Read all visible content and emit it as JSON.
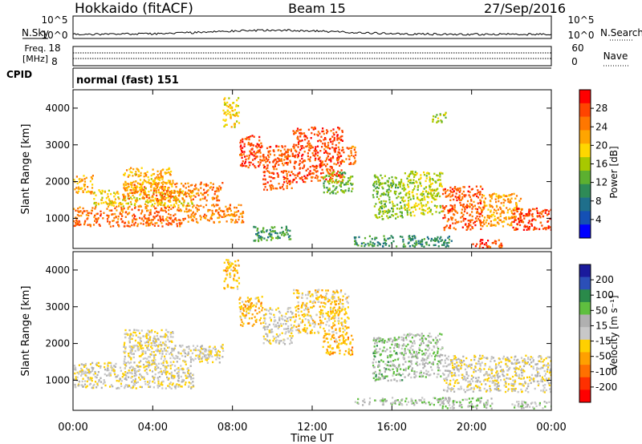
{
  "header": {
    "station": "Hokkaido (fitACF)",
    "beam": "Beam 15",
    "date": "27/Sep/2016"
  },
  "noise_panel": {
    "left_label": "N.Sky",
    "right_label": "N.Search",
    "left_ticks": [
      "10^5",
      "10^0"
    ],
    "right_ticks": [
      "10^5",
      "10^0"
    ]
  },
  "freq_panel": {
    "left_label_line1": "Freq.",
    "left_label_line2": "[MHz]",
    "right_label": "Nave",
    "left_ticks": [
      "18",
      "8"
    ],
    "right_ticks": [
      "60",
      "0"
    ]
  },
  "cpid_panel": {
    "label": "CPID",
    "value": "normal (fast) 151"
  },
  "axes": {
    "ylabel": "Slant Range [km]",
    "xlabel": "Time UT",
    "y_ticks": [
      "1000",
      "2000",
      "3000",
      "4000"
    ],
    "x_ticks": [
      "00:00",
      "04:00",
      "08:00",
      "12:00",
      "16:00",
      "20:00",
      "00:00"
    ]
  },
  "power_colorbar": {
    "label": "Power [dB]",
    "ticks": [
      "28",
      "24",
      "20",
      "16",
      "12",
      "8",
      "4"
    ],
    "colors": [
      "#ff0000",
      "#ff4400",
      "#ff7700",
      "#ffa500",
      "#ffd700",
      "#a8c800",
      "#5cb030",
      "#2e8b57",
      "#1f6f8b",
      "#1450b4",
      "#0000ff"
    ]
  },
  "velocity_colorbar": {
    "label": "Velocity [m s⁻¹]",
    "ticks": [
      "200",
      "100",
      "50",
      "15",
      "-15",
      "-50",
      "-100",
      "-200"
    ],
    "colors": [
      "#1a1a9c",
      "#2b4fb8",
      "#2a8a4a",
      "#5fbf3f",
      "#b0b0b0",
      "#c8c8c8",
      "#ffd000",
      "#ffa000",
      "#ff7000",
      "#ff3000",
      "#ff0000"
    ]
  },
  "chart_data": [
    {
      "type": "heatmap",
      "title": "Beam 15",
      "xlabel": "Time UT",
      "ylabel": "Slant Range [km]",
      "xlim": [
        0,
        24
      ],
      "ylim": [
        180,
        4500
      ],
      "colorbar": "Power [dB]",
      "colorbar_range": [
        0,
        30
      ],
      "regions": [
        {
          "t0": 0.0,
          "t1": 1.0,
          "r0": 1700,
          "r1": 2200,
          "v": 21
        },
        {
          "t0": 0.0,
          "t1": 5.5,
          "r0": 800,
          "r1": 1350,
          "v": 25
        },
        {
          "t0": 1.0,
          "t1": 6.0,
          "r0": 1350,
          "r1": 1800,
          "v": 18
        },
        {
          "t0": 2.5,
          "t1": 7.5,
          "r0": 1500,
          "r1": 2000,
          "v": 24
        },
        {
          "t0": 2.5,
          "t1": 5.0,
          "r0": 1800,
          "r1": 2400,
          "v": 20
        },
        {
          "t0": 5.5,
          "t1": 8.5,
          "r0": 900,
          "r1": 1400,
          "v": 23
        },
        {
          "t0": 7.5,
          "t1": 8.3,
          "r0": 3500,
          "r1": 4300,
          "v": 18
        },
        {
          "t0": 8.3,
          "t1": 9.5,
          "r0": 2400,
          "r1": 3300,
          "v": 27
        },
        {
          "t0": 9.5,
          "t1": 11.0,
          "r0": 1800,
          "r1": 3000,
          "v": 26
        },
        {
          "t0": 11.0,
          "t1": 13.5,
          "r0": 2000,
          "r1": 3500,
          "v": 27
        },
        {
          "t0": 13.5,
          "t1": 14.2,
          "r0": 2500,
          "r1": 3000,
          "v": 25
        },
        {
          "t0": 9.0,
          "t1": 11.0,
          "r0": 400,
          "r1": 800,
          "v": 10
        },
        {
          "t0": 12.5,
          "t1": 14.0,
          "r0": 1700,
          "r1": 2300,
          "v": 13
        },
        {
          "t0": 15.0,
          "t1": 16.5,
          "r0": 1000,
          "r1": 2200,
          "v": 13
        },
        {
          "t0": 14.0,
          "t1": 19.0,
          "r0": 250,
          "r1": 550,
          "v": 9
        },
        {
          "t0": 16.5,
          "t1": 18.5,
          "r0": 1100,
          "r1": 2300,
          "v": 16
        },
        {
          "t0": 18.0,
          "t1": 18.7,
          "r0": 3600,
          "r1": 3900,
          "v": 14
        },
        {
          "t0": 18.5,
          "t1": 20.5,
          "r0": 700,
          "r1": 1900,
          "v": 26
        },
        {
          "t0": 20.5,
          "t1": 22.5,
          "r0": 800,
          "r1": 1700,
          "v": 22
        },
        {
          "t0": 22.0,
          "t1": 24.0,
          "r0": 700,
          "r1": 1300,
          "v": 28
        },
        {
          "t0": 20.0,
          "t1": 21.5,
          "r0": 200,
          "r1": 450,
          "v": 27
        }
      ]
    },
    {
      "type": "heatmap",
      "title": "Beam 15",
      "xlabel": "Time UT",
      "ylabel": "Slant Range [km]",
      "xlim": [
        0,
        24
      ],
      "ylim": [
        180,
        4500
      ],
      "colorbar": "Velocity [m s⁻¹]",
      "colorbar_range": [
        -200,
        200
      ],
      "regions": [
        {
          "t0": 0.0,
          "t1": 6.0,
          "r0": 800,
          "r1": 1500,
          "v": 0
        },
        {
          "t0": 2.5,
          "t1": 7.5,
          "r0": 1500,
          "r1": 2000,
          "v": -5
        },
        {
          "t0": 2.5,
          "t1": 5.0,
          "r0": 1800,
          "r1": 2400,
          "v": -10
        },
        {
          "t0": 7.5,
          "t1": 8.3,
          "r0": 3500,
          "r1": 4300,
          "v": -60
        },
        {
          "t0": 8.3,
          "t1": 9.5,
          "r0": 2500,
          "r1": 3300,
          "v": -60
        },
        {
          "t0": 9.5,
          "t1": 11.0,
          "r0": 2000,
          "r1": 3000,
          "v": 0
        },
        {
          "t0": 11.0,
          "t1": 13.8,
          "r0": 2300,
          "r1": 3500,
          "v": -40
        },
        {
          "t0": 12.5,
          "t1": 14.0,
          "r0": 1700,
          "r1": 2300,
          "v": -60
        },
        {
          "t0": 15.0,
          "t1": 16.5,
          "r0": 1000,
          "r1": 2200,
          "v": 60
        },
        {
          "t0": 14.0,
          "t1": 19.0,
          "r0": 350,
          "r1": 550,
          "v": 40
        },
        {
          "t0": 16.5,
          "t1": 18.5,
          "r0": 1100,
          "r1": 2300,
          "v": 40
        },
        {
          "t0": 18.5,
          "t1": 24.0,
          "r0": 700,
          "r1": 1700,
          "v": 0
        },
        {
          "t0": 18.5,
          "t1": 21.0,
          "r0": 250,
          "r1": 550,
          "v": 45
        },
        {
          "t0": 22.0,
          "t1": 24.0,
          "r0": 250,
          "r1": 450,
          "v": 30
        }
      ]
    }
  ]
}
